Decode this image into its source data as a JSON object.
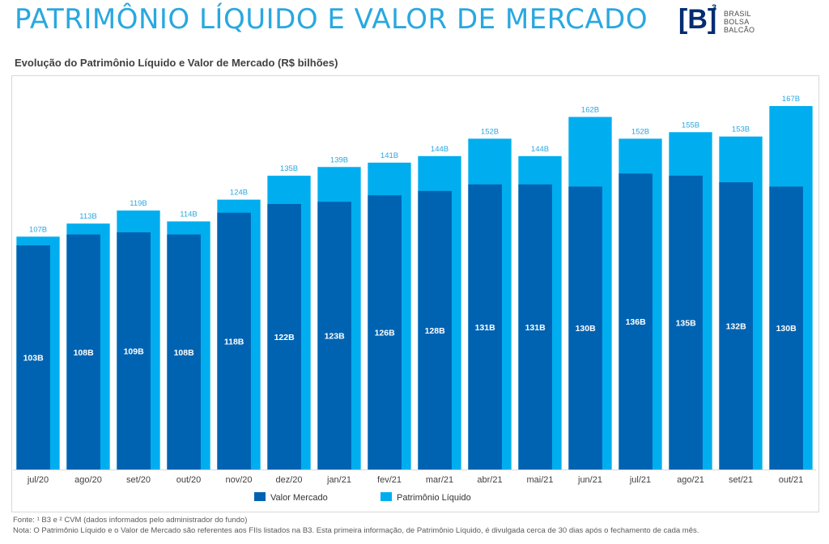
{
  "header": {
    "title": "PATRIMÔNIO LÍQUIDO E VALOR DE MERCADO",
    "subtitle": "Evolução do Patrimônio Líquido e Valor de Mercado (R$ bilhões)"
  },
  "logo": {
    "mark": "[B]",
    "superscript": "3",
    "line1": "BRASIL",
    "line2": "BOLSA",
    "line3": "BALCÃO"
  },
  "chart_data": {
    "type": "bar",
    "categories": [
      "jul/20",
      "ago/20",
      "set/20",
      "out/20",
      "nov/20",
      "dez/20",
      "jan/21",
      "fev/21",
      "mar/21",
      "abr/21",
      "mai/21",
      "jun/21",
      "jul/21",
      "ago/21",
      "set/21",
      "out/21"
    ],
    "series": [
      {
        "name": "Patrimônio Líquido",
        "color": "#00aeef",
        "values": [
          107,
          113,
          119,
          114,
          124,
          135,
          139,
          141,
          144,
          152,
          144,
          162,
          152,
          155,
          153,
          167
        ],
        "labels": [
          "107B",
          "113B",
          "119B",
          "114B",
          "124B",
          "135B",
          "139B",
          "141B",
          "144B",
          "152B",
          "144B",
          "162B",
          "152B",
          "155B",
          "153B",
          "167B"
        ]
      },
      {
        "name": "Valor Mercado",
        "color": "#0063b1",
        "values": [
          103,
          108,
          109,
          108,
          118,
          122,
          123,
          126,
          128,
          131,
          131,
          130,
          136,
          135,
          132,
          130
        ],
        "labels": [
          "103B",
          "108B",
          "109B",
          "108B",
          "118B",
          "122B",
          "123B",
          "126B",
          "128B",
          "131B",
          "131B",
          "130B",
          "136B",
          "135B",
          "132B",
          "130B"
        ]
      }
    ],
    "ylim": [
      0,
      167
    ],
    "grid": false,
    "legend": "bottom-center"
  },
  "legend": {
    "items": [
      {
        "label": "Valor Mercado",
        "color": "#0063b1"
      },
      {
        "label": "Patrimônio Líquido",
        "color": "#00aeef"
      }
    ]
  },
  "footnote": {
    "source": "Fonte: ¹ B3 e ² CVM (dados informados pelo administrador do fundo)",
    "note": "Nota: O Patrimônio Líquido e o Valor de Mercado são referentes aos FIIs listados na B3. Esta primeira informação, de Patrimônio Líquido, é divulgada cerca de 30 dias após o fechamento de cada mês."
  }
}
